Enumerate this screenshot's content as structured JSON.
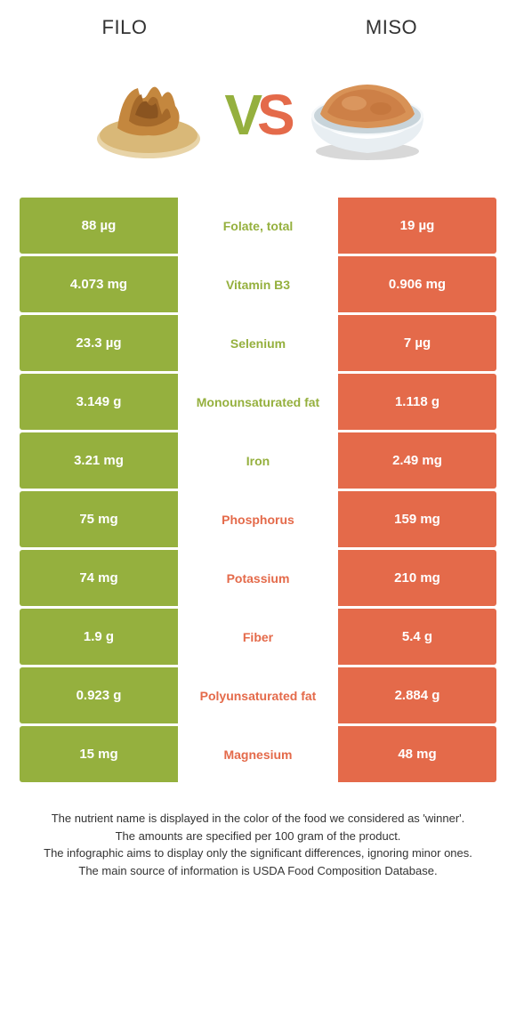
{
  "colors": {
    "left": "#95b03e",
    "right": "#e46a4a",
    "cell_text": "#ffffff",
    "background": "#ffffff",
    "body_text": "#333333"
  },
  "header": {
    "left_title": "FILO",
    "right_title": "MISO"
  },
  "vs": {
    "v": "V",
    "s": "S"
  },
  "rows": [
    {
      "left": "88 µg",
      "name": "Folate, total",
      "right": "19 µg",
      "winner": "left"
    },
    {
      "left": "4.073 mg",
      "name": "Vitamin B3",
      "right": "0.906 mg",
      "winner": "left"
    },
    {
      "left": "23.3 µg",
      "name": "Selenium",
      "right": "7 µg",
      "winner": "left"
    },
    {
      "left": "3.149 g",
      "name": "Monounsaturated fat",
      "right": "1.118 g",
      "winner": "left"
    },
    {
      "left": "3.21 mg",
      "name": "Iron",
      "right": "2.49 mg",
      "winner": "left"
    },
    {
      "left": "75 mg",
      "name": "Phosphorus",
      "right": "159 mg",
      "winner": "right"
    },
    {
      "left": "74 mg",
      "name": "Potassium",
      "right": "210 mg",
      "winner": "right"
    },
    {
      "left": "1.9 g",
      "name": "Fiber",
      "right": "5.4 g",
      "winner": "right"
    },
    {
      "left": "0.923 g",
      "name": "Polyunsaturated fat",
      "right": "2.884 g",
      "winner": "right"
    },
    {
      "left": "15 mg",
      "name": "Magnesium",
      "right": "48 mg",
      "winner": "right"
    }
  ],
  "footer": {
    "line1": "The nutrient name is displayed in the color of the food we considered as 'winner'.",
    "line2": "The amounts are specified per 100 gram of the product.",
    "line3": "The infographic aims to display only the significant differences, ignoring minor ones.",
    "line4": "The main source of information is USDA Food Composition Database."
  }
}
